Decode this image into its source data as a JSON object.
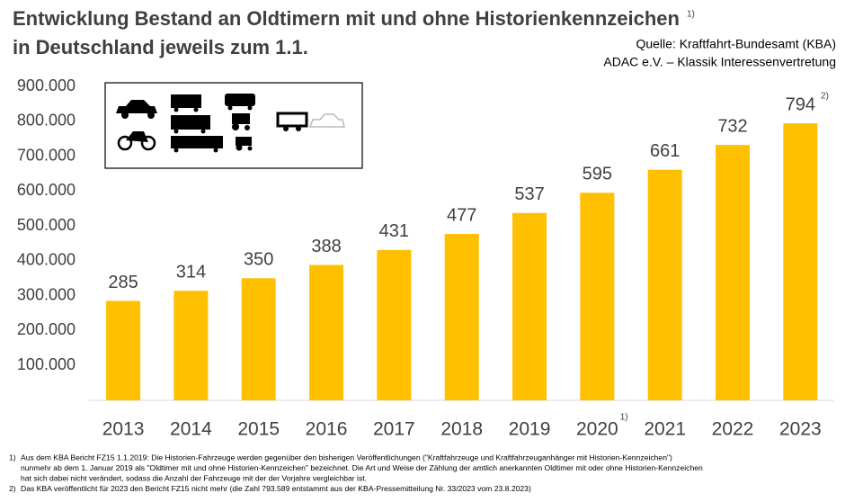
{
  "chart_data": {
    "type": "bar",
    "title": [
      "Entwicklung Bestand an Oldtimern mit und ohne Historienkennzeichen",
      "in Deutschland jeweils zum 1.1."
    ],
    "title_note": "1)",
    "sources": [
      "Quelle: Kraftfahrt-Bundesamt (KBA)",
      "ADAC e.V. – Klassik Interessenvertretung"
    ],
    "categories": [
      "2013",
      "2014",
      "2015",
      "2016",
      "2017",
      "2018",
      "2019",
      "2020",
      "2021",
      "2022",
      "2023"
    ],
    "category_notes": [
      null,
      null,
      null,
      null,
      null,
      null,
      null,
      "1)",
      null,
      null,
      null
    ],
    "values": [
      285000,
      314000,
      350000,
      388000,
      431000,
      477000,
      537000,
      595000,
      661000,
      732000,
      794000
    ],
    "value_labels": [
      "285",
      "314",
      "350",
      "388",
      "431",
      "477",
      "537",
      "595",
      "661",
      "732",
      "794"
    ],
    "value_notes": [
      null,
      null,
      null,
      null,
      null,
      null,
      null,
      null,
      null,
      null,
      "2)"
    ],
    "color": "#FFC000",
    "ylim": [
      0,
      900000
    ],
    "yticks": [
      {
        "value": 100000,
        "label": "100.000"
      },
      {
        "value": 200000,
        "label": "200.000"
      },
      {
        "value": 300000,
        "label": "300.000"
      },
      {
        "value": 400000,
        "label": "400.000"
      },
      {
        "value": 500000,
        "label": "500.000"
      },
      {
        "value": 600000,
        "label": "600.000"
      },
      {
        "value": 700000,
        "label": "700.000"
      },
      {
        "value": 800000,
        "label": "800.000"
      },
      {
        "value": 900000,
        "label": "900.000"
      }
    ],
    "grid": false,
    "footnotes": [
      {
        "marker": "1)",
        "lines": [
          "Aus dem KBA Bericht FZ15 1.1.2019:  Die Historien-Fahrzeuge werden gegenüber den bisherigen Veröffentlichungen  (\"Kraftfahrzeuge und Kraftfahrzeuganhänger mit Historien-Kennzeichen\")",
          "nunmehr ab dem  1. Januar 2019 als  \"Oldtimer mit und ohne Historien-Kennzeichen\" bezeichnet. Die Art und Weise der Zählung der amtlich anerkannten Oldtimer mit oder ohne Historien-Kennzeichen",
          "hat sich dabei nicht verändert, sodass die Anzahl der Fahrzeuge mit der der Vorjahre vergleichbar ist."
        ]
      },
      {
        "marker": "2)",
        "lines": [
          "Das KBA veröffentlicht für 2023 den Bericht FZ15 nicht mehr (die Zahl 793.589 entstammt aus der KBA-Pressemitteilung Nr. 33/2023 vom 23.8.2023)"
        ]
      }
    ]
  }
}
